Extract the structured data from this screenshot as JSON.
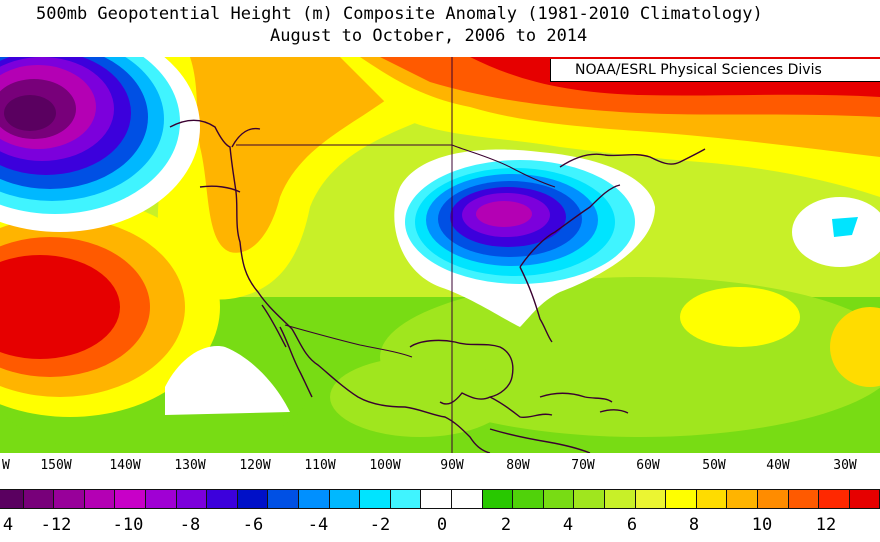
{
  "title": {
    "line1": "500mb Geopotential Height (m) Composite Anomaly (1981-2010 Climatology)",
    "line2": "August to October, 2006 to 2014"
  },
  "credit": "NOAA/ESRL Physical Sciences Divis",
  "longitude_ticks": [
    "W",
    "150W",
    "140W",
    "130W",
    "120W",
    "110W",
    "100W",
    "90W",
    "80W",
    "70W",
    "60W",
    "50W",
    "40W",
    "30W"
  ],
  "colorbar": {
    "colors": [
      "#5a0060",
      "#78007a",
      "#98009a",
      "#b400b4",
      "#c800c8",
      "#a000d4",
      "#7c00dc",
      "#3c00dc",
      "#0010c8",
      "#0050e4",
      "#0090ff",
      "#00b8ff",
      "#00e4ff",
      "#40f4ff",
      "#ffffff",
      "#ffffff",
      "#28c800",
      "#50d20a",
      "#78dc14",
      "#a0e61e",
      "#c8f028",
      "#ebf532",
      "#ffff00",
      "#ffdc00",
      "#ffb400",
      "#ff8c00",
      "#ff5a00",
      "#ff2800",
      "#e60000"
    ],
    "labels": [
      "4",
      "-12",
      "-10",
      "-8",
      "-6",
      "-4",
      "-2",
      "0",
      "2",
      "4",
      "6",
      "8",
      "10",
      "12",
      ""
    ]
  },
  "map": {
    "variable": "500mb geopotential height anomaly",
    "units": "m",
    "features": [
      {
        "name": "negative-anomaly-gulf-of-alaska",
        "min_value": -12
      },
      {
        "name": "negative-anomaly-eastern-north-america",
        "min_value": -10
      },
      {
        "name": "negative-anomaly-central-atlantic",
        "min_value": -2
      },
      {
        "name": "positive-anomaly-eastern-pacific",
        "max_value": 14
      },
      {
        "name": "positive-anomaly-north-atlantic-high-latitudes",
        "max_value": 14
      }
    ]
  }
}
